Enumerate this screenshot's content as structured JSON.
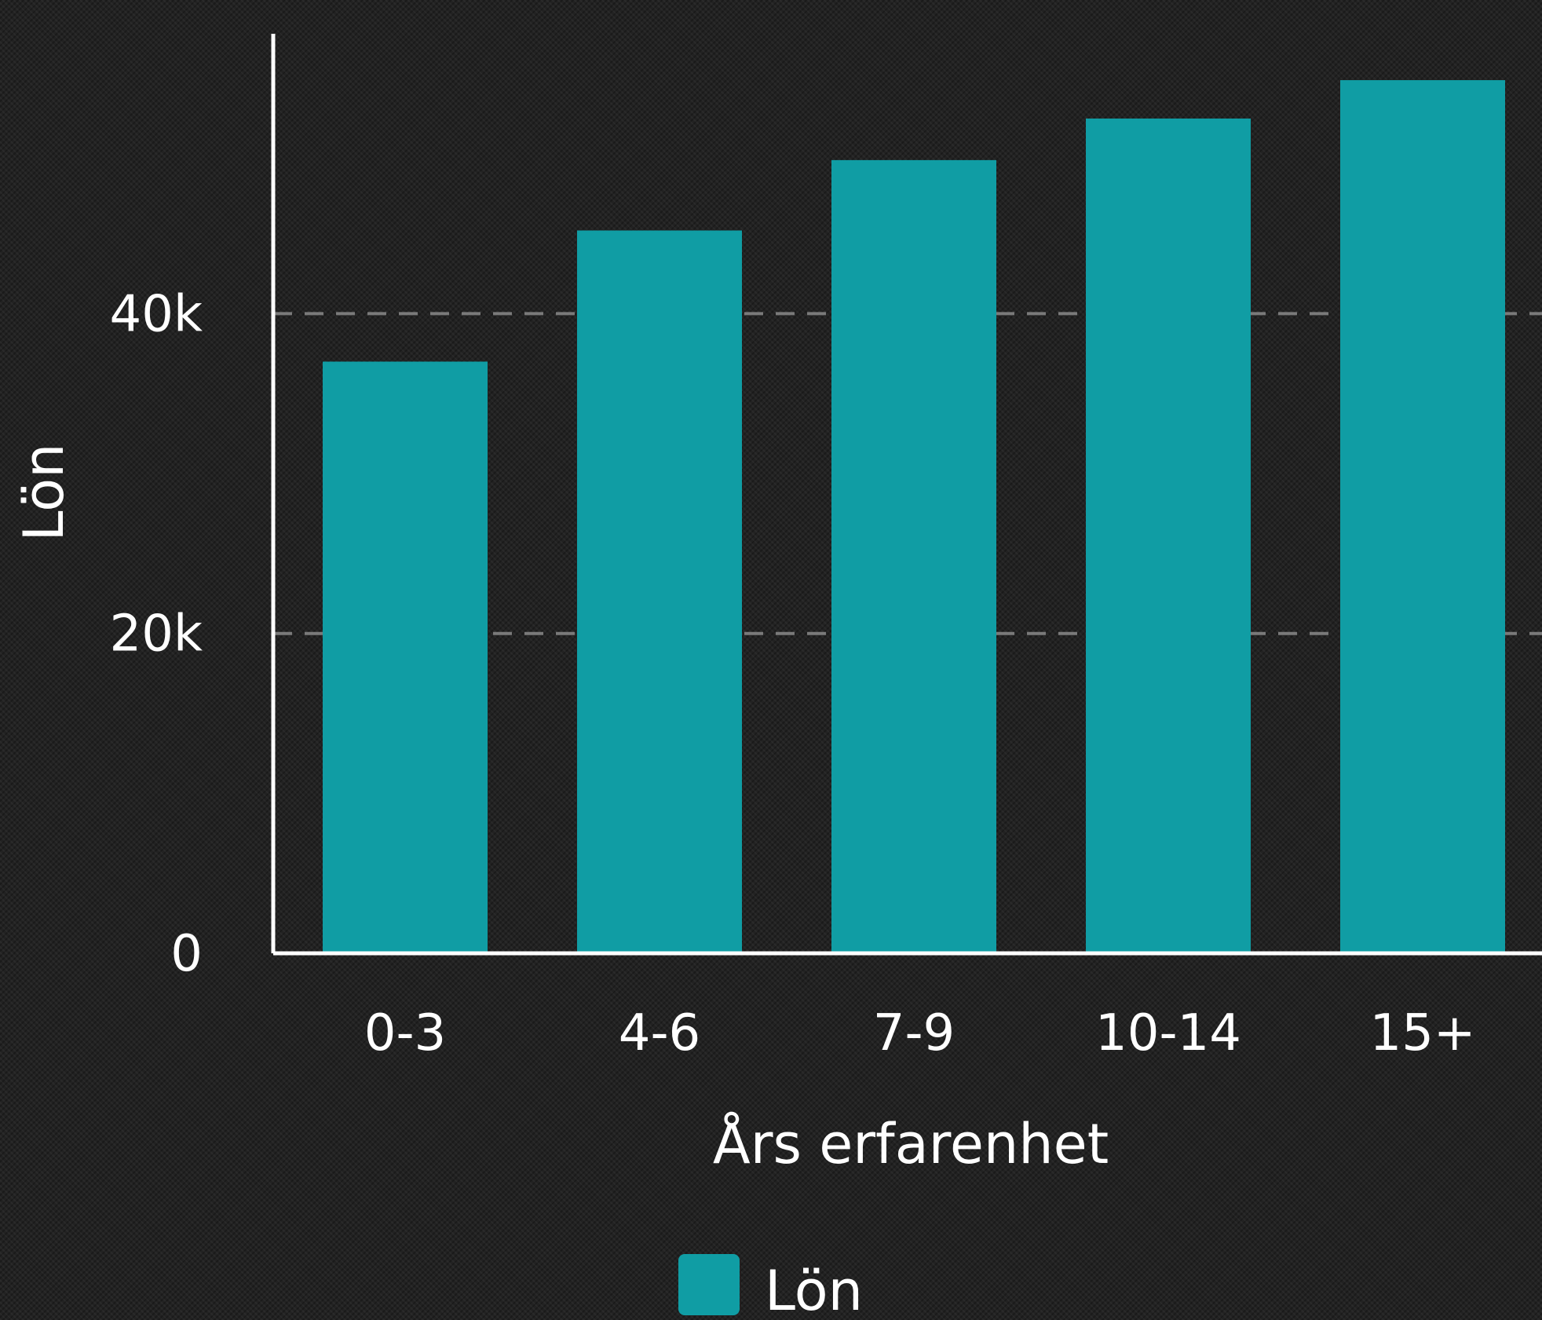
{
  "chart_data": {
    "type": "bar",
    "categories": [
      "0-3",
      "4-6",
      "7-9",
      "10-14",
      "15+"
    ],
    "series": [
      {
        "name": "Lön",
        "values": [
          37000,
          45200,
          49600,
          52200,
          54600
        ]
      }
    ],
    "xlabel": "Års erfarenhet",
    "ylabel": "Lön",
    "ylim": [
      0,
      57500
    ],
    "yticks": [
      0,
      20000,
      40000
    ],
    "ytick_labels": [
      "0",
      "20k",
      "40k"
    ],
    "grid": true,
    "legend_position": "bottom-center",
    "colors": {
      "bar": "#109da4",
      "background": "#222222",
      "axis": "#ffffff",
      "grid": "#7a7a7a",
      "text": "#ffffff"
    }
  }
}
